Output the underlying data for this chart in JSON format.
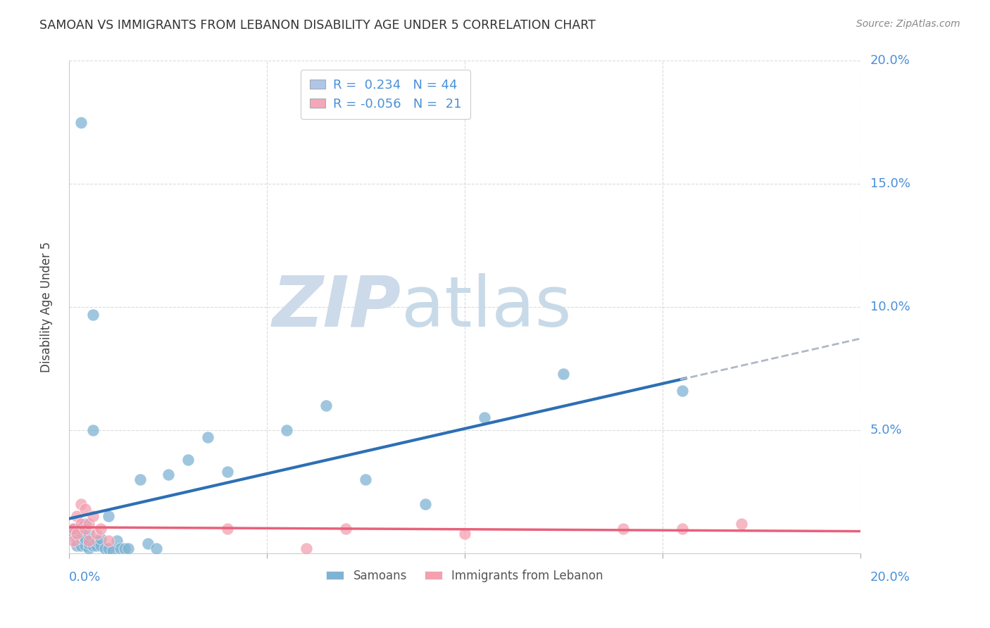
{
  "title": "SAMOAN VS IMMIGRANTS FROM LEBANON DISABILITY AGE UNDER 5 CORRELATION CHART",
  "source": "Source: ZipAtlas.com",
  "ylabel": "Disability Age Under 5",
  "background_color": "#ffffff",
  "watermark_zip": "ZIP",
  "watermark_atlas": "atlas",
  "legend_entries": [
    {
      "label_r": "R =  0.234",
      "label_n": "N = 44",
      "color": "#aec6e8"
    },
    {
      "label_r": "R = -0.056",
      "label_n": "N =  21",
      "color": "#f4a7b9"
    }
  ],
  "samoans_x": [
    0.001,
    0.001,
    0.002,
    0.002,
    0.002,
    0.003,
    0.003,
    0.003,
    0.003,
    0.004,
    0.004,
    0.004,
    0.005,
    0.005,
    0.005,
    0.006,
    0.006,
    0.006,
    0.007,
    0.007,
    0.008,
    0.008,
    0.009,
    0.01,
    0.01,
    0.011,
    0.012,
    0.013,
    0.014,
    0.015,
    0.018,
    0.02,
    0.022,
    0.025,
    0.03,
    0.035,
    0.04,
    0.055,
    0.065,
    0.075,
    0.09,
    0.105,
    0.125,
    0.155
  ],
  "samoans_y": [
    0.01,
    0.008,
    0.005,
    0.008,
    0.003,
    0.003,
    0.006,
    0.01,
    0.175,
    0.003,
    0.006,
    0.012,
    0.002,
    0.004,
    0.008,
    0.003,
    0.097,
    0.05,
    0.003,
    0.005,
    0.003,
    0.006,
    0.002,
    0.002,
    0.015,
    0.001,
    0.005,
    0.002,
    0.002,
    0.002,
    0.03,
    0.004,
    0.002,
    0.032,
    0.038,
    0.047,
    0.033,
    0.05,
    0.06,
    0.03,
    0.02,
    0.055,
    0.073,
    0.066
  ],
  "lebanon_x": [
    0.001,
    0.001,
    0.002,
    0.002,
    0.003,
    0.003,
    0.004,
    0.004,
    0.005,
    0.005,
    0.006,
    0.007,
    0.008,
    0.01,
    0.04,
    0.06,
    0.07,
    0.1,
    0.14,
    0.155,
    0.17
  ],
  "lebanon_y": [
    0.005,
    0.01,
    0.008,
    0.015,
    0.012,
    0.02,
    0.01,
    0.018,
    0.005,
    0.012,
    0.015,
    0.008,
    0.01,
    0.005,
    0.01,
    0.002,
    0.01,
    0.008,
    0.01,
    0.01,
    0.012
  ],
  "ylim": [
    0,
    0.2
  ],
  "xlim": [
    0,
    0.2
  ],
  "yticks": [
    0.0,
    0.05,
    0.1,
    0.15,
    0.2
  ],
  "ytick_labels": [
    "",
    "5.0%",
    "10.0%",
    "15.0%",
    "20.0%"
  ],
  "xticks": [
    0.0,
    0.05,
    0.1,
    0.15,
    0.2
  ],
  "grid_color": "#cccccc",
  "samoan_color": "#7fb3d3",
  "lebanon_color": "#f4a0b0",
  "samoan_line_color": "#2d6fb5",
  "lebanon_line_color": "#e8607a",
  "trend_extension_color": "#b0b8c8",
  "right_tick_color": "#4a90d9",
  "title_fontsize": 12.5,
  "source_fontsize": 10,
  "watermark_color_zip": "#ccdaea",
  "watermark_color_atlas": "#c8dae8"
}
